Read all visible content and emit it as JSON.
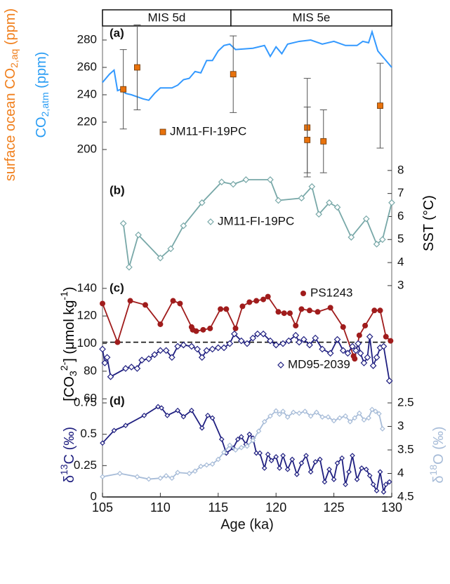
{
  "chart_data": [
    {
      "type": "line",
      "panel_label": "(a)",
      "periods": [
        {
          "label": "MIS 5d",
          "start": 105,
          "end": 116.1
        },
        {
          "label": "MIS 5e",
          "start": 116.1,
          "end": 130
        }
      ],
      "ylabels": [
        {
          "color": "#f07f1c",
          "segments": [
            {
              "text": "surface ocean CO"
            },
            {
              "text": "2,aq",
              "shift": "sub"
            },
            {
              "text": " (ppm)"
            }
          ]
        },
        {
          "color": "#2a9df4",
          "segments": [
            {
              "text": "CO"
            },
            {
              "text": "2,atm",
              "shift": "sub"
            },
            {
              "text": " (ppm)"
            }
          ]
        }
      ],
      "ylim": [
        192,
        290
      ],
      "yticks": [
        200,
        220,
        240,
        260,
        280
      ],
      "series": [
        {
          "style": "line",
          "color": "#3399ff",
          "axis": "y",
          "x": [
            105,
            105.6,
            106,
            106.3,
            106.6,
            107,
            107.5,
            108.5,
            109,
            109.5,
            110,
            111,
            111.5,
            112,
            112.5,
            113,
            113.5,
            114,
            114.5,
            115,
            115.5,
            116,
            116.5,
            118,
            119,
            119.5,
            120,
            120.5,
            121,
            122,
            123,
            124,
            125,
            126,
            127,
            127.5,
            128,
            128.3,
            128.8,
            129.5,
            130
          ],
          "values": [
            249,
            255,
            258,
            243,
            244,
            241,
            240,
            237,
            236,
            241,
            245,
            245,
            247,
            251,
            252,
            257,
            256,
            265,
            265,
            272,
            276,
            277,
            273,
            274,
            276,
            268,
            275,
            270,
            277,
            279,
            280,
            277,
            279,
            276,
            276,
            279,
            278,
            286,
            272,
            265,
            260
          ]
        },
        {
          "style": "points",
          "name": "JM11-FI-19PC",
          "color": "#e8720c",
          "marker": "square",
          "axis": "y",
          "x": [
            106.8,
            108,
            116.3,
            122.7,
            122.7,
            124.1,
            129
          ],
          "values": [
            244,
            260,
            255,
            216,
            207,
            206,
            232
          ],
          "errors": [
            29,
            31,
            28,
            36,
            24,
            23,
            31
          ]
        }
      ]
    },
    {
      "type": "line",
      "panel_label": "(b)",
      "ylabels": [
        {
          "color": "#000000",
          "segments": [
            {
              "text": "SST (°C)"
            }
          ]
        }
      ],
      "y2lim": [
        2.6,
        8.3
      ],
      "y2ticks": [
        3,
        4,
        5,
        6,
        7,
        8
      ],
      "series": [
        {
          "style": "line",
          "name": "JM11-FI-19PC",
          "color": "#78a8a8",
          "marker": "diamond",
          "axis": "y2",
          "x": [
            106.8,
            107.3,
            108.1,
            110,
            110.9,
            112,
            113.6,
            115.3,
            116.3,
            117.4,
            119.5,
            120.2,
            122.2,
            123.1,
            123.7,
            124.6,
            125.3,
            126.5,
            127.8,
            128.7,
            129.2,
            130
          ],
          "values": [
            5.7,
            3.8,
            5.2,
            4.2,
            4.6,
            5.6,
            6.6,
            7.5,
            7.4,
            7.6,
            7.6,
            6.7,
            6.8,
            7.3,
            6.1,
            6.6,
            6.4,
            5.1,
            5.9,
            4.8,
            5,
            6.6
          ]
        }
      ]
    },
    {
      "type": "line",
      "panel_label": "(c)",
      "ylabels": [
        {
          "color": "#000000",
          "segments": [
            {
              "text": "[CO"
            },
            {
              "text": "3",
              "shift": "sub"
            },
            {
              "text": "2-",
              "shift": "super"
            },
            {
              "text": "] (μmol kg"
            },
            {
              "text": "-1",
              "shift": "super"
            },
            {
              "text": ")"
            }
          ]
        }
      ],
      "ylim": [
        55,
        145
      ],
      "yticks": [
        60,
        80,
        100,
        120,
        140
      ],
      "hline": 101,
      "series": [
        {
          "style": "line",
          "name": "PS1243",
          "color": "#a01c1c",
          "marker": "circle",
          "axis": "y",
          "x": [
            105,
            106.3,
            107.4,
            108.7,
            110,
            111.1,
            111.7,
            112.7,
            112.8,
            113.1,
            113.7,
            114.3,
            115.2,
            115.7,
            116.5,
            117.1,
            117.7,
            118.3,
            118.9,
            119.3,
            120.2,
            120.7,
            121.2,
            121.7,
            122.2,
            122.9,
            123.6,
            124.7,
            125.8,
            126.7,
            126.8,
            127.2,
            127.7,
            128.5,
            129,
            129.5,
            129.9
          ],
          "values": [
            129,
            101,
            131,
            128,
            114,
            131,
            129,
            112,
            110,
            109,
            110,
            111,
            125,
            125,
            111,
            127,
            130,
            131,
            132,
            134,
            123,
            122,
            122,
            113,
            125,
            124,
            123,
            126,
            112,
            91,
            89,
            106,
            113,
            124,
            124,
            105,
            102
          ]
        },
        {
          "style": "line",
          "name": "MD95-2039",
          "color": "#1f1f80",
          "marker": "diamond",
          "axis": "y",
          "x": [
            105,
            105.2,
            105.4,
            105.7,
            107,
            107.5,
            108,
            108.4,
            109,
            109.5,
            110,
            110.5,
            111,
            111.5,
            112,
            112.7,
            113.2,
            113.6,
            114,
            114.5,
            115,
            115.5,
            116,
            116.4,
            117,
            117.5,
            118,
            118.4,
            118.9,
            119.5,
            120,
            120.6,
            121.1,
            121.7,
            122,
            122.4,
            122.9,
            123.4,
            124,
            124.7,
            125.3,
            125.8,
            126.2,
            126.6,
            126.9,
            127.1,
            127.3,
            127.6,
            127.9,
            128.1,
            128.4,
            128.7,
            129,
            129.3,
            129.8
          ],
          "values": [
            96,
            86,
            90,
            76,
            82,
            83,
            82,
            88,
            89,
            92,
            95,
            95,
            90,
            98,
            99,
            98,
            96,
            90,
            95,
            96,
            97,
            97,
            100,
            107,
            102,
            100,
            104,
            107,
            107,
            102,
            99,
            100,
            102,
            106,
            101,
            103,
            99,
            104,
            96,
            93,
            103,
            95,
            93,
            98,
            95,
            100,
            93,
            86,
            90,
            105,
            84,
            90,
            97,
            98,
            73
          ]
        }
      ]
    },
    {
      "type": "line",
      "panel_label": "(d)",
      "ylabels": [
        {
          "color": "#1f1f80",
          "segments": [
            {
              "text": "δ"
            },
            {
              "text": "13",
              "shift": "super"
            },
            {
              "text": "C  (‰)"
            }
          ]
        },
        {
          "color": "#a7bcd8",
          "segments": [
            {
              "text": "δ"
            },
            {
              "text": "18",
              "shift": "super"
            },
            {
              "text": "O  (‰)"
            }
          ]
        }
      ],
      "xlabel": "Age (ka)",
      "xlim": [
        105,
        130
      ],
      "xticks": [
        105,
        110,
        115,
        120,
        125,
        130
      ],
      "ylim": [
        0,
        0.75
      ],
      "yticks": [
        0,
        0.25,
        0.5,
        0.75
      ],
      "y2lim": [
        4.5,
        2.5
      ],
      "y2ticks": [
        2.5,
        3,
        3.5,
        4,
        4.5
      ],
      "series": [
        {
          "style": "line",
          "color": "#1f1f80",
          "marker": "diamond",
          "axis": "y",
          "x": [
            105,
            106,
            107,
            108.6,
            109.8,
            110.1,
            110.6,
            111.5,
            112,
            112.7,
            113.6,
            114.1,
            114.5,
            115.3,
            115.7,
            116.3,
            116.7,
            117,
            117.4,
            117.7,
            118,
            118.3,
            118.6,
            119,
            119.3,
            119.6,
            120,
            120.3,
            120.6,
            121,
            121.4,
            121.8,
            122.2,
            122.6,
            123,
            123.4,
            123.8,
            124.2,
            124.6,
            125,
            125.3,
            125.7,
            126,
            126.3,
            126.6,
            127,
            127.4,
            127.8,
            128.1,
            128.4,
            128.7,
            129,
            129.3,
            129.5,
            129.8
          ],
          "values": [
            0.43,
            0.53,
            0.57,
            0.65,
            0.72,
            0.71,
            0.65,
            0.69,
            0.64,
            0.69,
            0.55,
            0.65,
            0.63,
            0.46,
            0.35,
            0.39,
            0.46,
            0.48,
            0.42,
            0.5,
            0.47,
            0.35,
            0.35,
            0.23,
            0.34,
            0.29,
            0.32,
            0.23,
            0.33,
            0.22,
            0.3,
            0.18,
            0.27,
            0.33,
            0.2,
            0.28,
            0.3,
            0.12,
            0.22,
            0.14,
            0.27,
            0.31,
            0.1,
            0.2,
            0.33,
            0.14,
            0.23,
            0.22,
            0.17,
            0.1,
            0.05,
            0.2,
            0.04,
            0.1,
            0.12
          ]
        },
        {
          "style": "line",
          "color": "#a7bcd8",
          "marker": "diamond",
          "axis": "y2",
          "x": [
            105,
            106.5,
            108,
            109,
            110,
            110.5,
            111,
            111.5,
            112.5,
            113,
            113.5,
            114,
            114.5,
            115,
            115.5,
            116,
            116.5,
            117,
            117.5,
            118,
            118.5,
            119,
            119.5,
            120,
            120.3,
            120.6,
            121,
            121.5,
            122,
            122.5,
            123,
            123.5,
            124,
            124.5,
            125,
            125.5,
            126,
            126.4,
            126.8,
            127.2,
            127.6,
            128,
            128.3,
            128.6,
            128.9,
            129.2
          ],
          "values": [
            4.07,
            4,
            4.07,
            4.12,
            4.1,
            4.05,
            4.1,
            3.98,
            4,
            3.95,
            3.85,
            3.82,
            3.8,
            3.7,
            3.55,
            3.4,
            3.5,
            3.45,
            3.42,
            3.3,
            3.1,
            2.9,
            2.78,
            2.67,
            2.74,
            2.68,
            2.8,
            2.7,
            2.72,
            2.68,
            2.78,
            2.7,
            2.8,
            2.8,
            2.88,
            2.82,
            2.78,
            2.9,
            2.82,
            2.72,
            2.86,
            2.82,
            2.64,
            2.68,
            2.73,
            3.05
          ]
        }
      ]
    }
  ]
}
